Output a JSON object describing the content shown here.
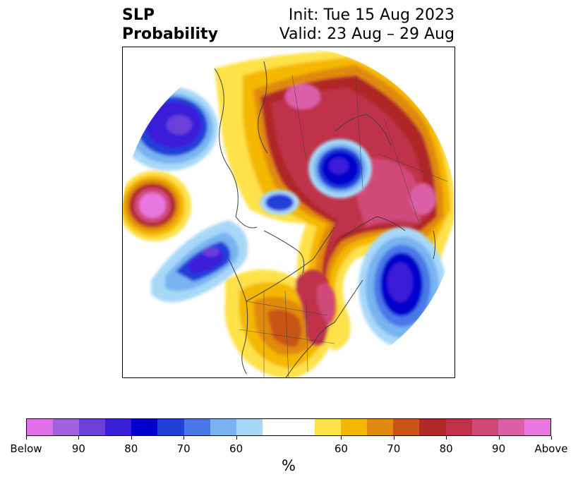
{
  "title": {
    "variable": "SLP",
    "kind": "Probability",
    "init": "Init: Tue 15 Aug 2023",
    "valid": "Valid: 23 Aug – 29 Aug"
  },
  "colorbar": {
    "colors": [
      "#e070e8",
      "#a060e0",
      "#6a40d8",
      "#3a1fd8",
      "#0000cc",
      "#2040d8",
      "#4a78e8",
      "#78b4f0",
      "#a8d8f8",
      "#ffffff",
      "#ffe14a",
      "#f4b800",
      "#e08a10",
      "#c85418",
      "#b02828",
      "#c03048",
      "#d04878",
      "#dc60a8",
      "#e878e0"
    ],
    "labels": [
      "Below",
      "90",
      "80",
      "70",
      "60",
      "60",
      "70",
      "80",
      "90",
      "Above"
    ],
    "unit": "%"
  }
}
